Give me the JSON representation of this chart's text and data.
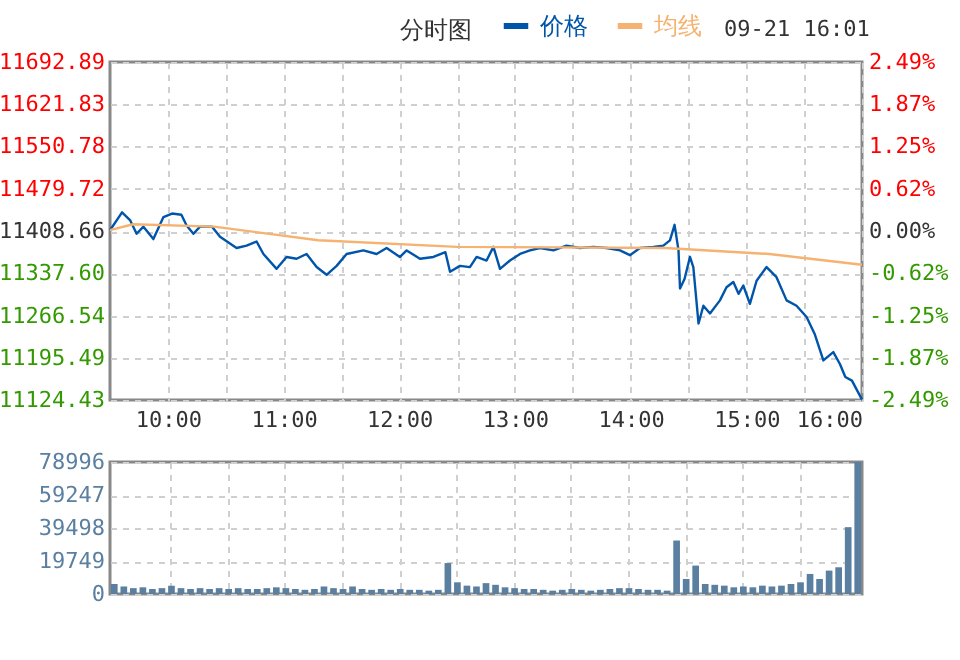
{
  "chart_data": [
    {
      "type": "line",
      "title": "分时图",
      "annotations": [
        "09-21 16:01"
      ],
      "legend": "top",
      "grid": true,
      "xlim": [
        9.5,
        16
      ],
      "xticks": [
        {
          "value": 10,
          "label": "10:00"
        },
        {
          "value": 10.5,
          "label": null
        },
        {
          "value": 11,
          "label": "11:00"
        },
        {
          "value": 11.5,
          "label": null
        },
        {
          "value": 12,
          "label": "12:00"
        },
        {
          "value": 12.5,
          "label": null
        },
        {
          "value": 13,
          "label": "13:00"
        },
        {
          "value": 13.5,
          "label": null
        },
        {
          "value": 14,
          "label": "14:00"
        },
        {
          "value": 14.5,
          "label": null
        },
        {
          "value": 15,
          "label": "15:00"
        },
        {
          "value": 15.5,
          "label": null
        },
        {
          "value": 16,
          "label": "16:00"
        }
      ],
      "ylim": [
        11124.43,
        11692.89
      ],
      "yticks": [
        {
          "value": 11124.43,
          "label": "11124.43"
        },
        {
          "value": 11195.49,
          "label": "11195.49"
        },
        {
          "value": 11266.54,
          "label": "11266.54"
        },
        {
          "value": 11337.6,
          "label": "11337.60"
        },
        {
          "value": 11408.66,
          "label": "11408.66"
        },
        {
          "value": 11479.72,
          "label": "11479.72"
        },
        {
          "value": 11550.78,
          "label": "11550.78"
        },
        {
          "value": 11621.83,
          "label": "11621.83"
        },
        {
          "value": 11692.89,
          "label": "11692.89"
        }
      ],
      "y2lim": [
        -2.49,
        2.49
      ],
      "y2ticks": [
        {
          "value": -2.49,
          "label": "-2.49%"
        },
        {
          "value": -1.87,
          "label": "-1.87%"
        },
        {
          "value": -1.25,
          "label": "-1.25%"
        },
        {
          "value": -0.62,
          "label": "-0.62%"
        },
        {
          "value": 0,
          "label": "0.00%"
        },
        {
          "value": 0.62,
          "label": "0.62%"
        },
        {
          "value": 1.25,
          "label": "1.25%"
        },
        {
          "value": 1.87,
          "label": "1.87%"
        },
        {
          "value": 2.49,
          "label": "2.49%"
        }
      ],
      "series": [
        {
          "name": "价格",
          "color": "#0055aa",
          "x": [
            9.5,
            9.604,
            9.673,
            9.73,
            9.789,
            9.875,
            9.962,
            10.036,
            10.117,
            10.162,
            10.221,
            10.278,
            10.382,
            10.451,
            10.594,
            10.681,
            10.767,
            10.826,
            10.94,
            11.026,
            11.113,
            11.199,
            11.286,
            11.372,
            11.459,
            11.545,
            11.69,
            11.804,
            11.891,
            12.006,
            12.064,
            12.179,
            12.295,
            12.399,
            12.439,
            12.525,
            12.611,
            12.669,
            12.755,
            12.814,
            12.871,
            12.957,
            13.044,
            13.13,
            13.217,
            13.333,
            13.446,
            13.562,
            13.678,
            13.792,
            13.908,
            13.994,
            14.081,
            14.197,
            14.283,
            14.34,
            14.38,
            14.414,
            14.427,
            14.466,
            14.513,
            14.542,
            14.587,
            14.629,
            14.686,
            14.772,
            14.829,
            14.888,
            14.933,
            14.974,
            15.031,
            15.089,
            15.175,
            15.261,
            15.348,
            15.434,
            15.521,
            15.59,
            15.666,
            15.752,
            15.809,
            15.856,
            15.913,
            16
          ],
          "values": [
            11410,
            11440,
            11427,
            11404,
            11416,
            11395,
            11432,
            11438,
            11436,
            11418,
            11404,
            11416,
            11416,
            11399,
            11380,
            11384,
            11391,
            11370,
            11345,
            11365,
            11362,
            11370,
            11348,
            11335,
            11350,
            11370,
            11376,
            11370,
            11380,
            11365,
            11376,
            11362,
            11365,
            11373,
            11340,
            11350,
            11348,
            11365,
            11359,
            11382,
            11345,
            11359,
            11370,
            11376,
            11380,
            11376,
            11384,
            11380,
            11382,
            11380,
            11376,
            11368,
            11380,
            11382,
            11384,
            11393,
            11419,
            11376,
            11312,
            11328,
            11365,
            11348,
            11253,
            11283,
            11270,
            11292,
            11314,
            11323,
            11303,
            11317,
            11286,
            11325,
            11348,
            11331,
            11292,
            11283,
            11264,
            11236,
            11191,
            11205,
            11185,
            11163,
            11157,
            11125
          ]
        },
        {
          "name": "均线",
          "color": "#f5b270",
          "x": [
            9.5,
            9.7,
            10.4,
            11.3,
            12.5,
            14.3,
            15.2,
            16
          ],
          "values": [
            11410,
            11420,
            11416,
            11393,
            11382,
            11380,
            11370,
            11352
          ]
        }
      ]
    },
    {
      "type": "bar",
      "grid": true,
      "tick_labels": "y",
      "categories": [
        null,
        null,
        null,
        null,
        null,
        null,
        null,
        null,
        null,
        null,
        null,
        null,
        null,
        null,
        null,
        null,
        null,
        null,
        null,
        null,
        null,
        null,
        null,
        null,
        null,
        null,
        null,
        null,
        null,
        null,
        null,
        null,
        null,
        null,
        null,
        null,
        null,
        null,
        null,
        null,
        null,
        null,
        null,
        null,
        null,
        null,
        null,
        null,
        null,
        null,
        null,
        null,
        null,
        null,
        null,
        null,
        null,
        null,
        null,
        null,
        null,
        null,
        null,
        null,
        null,
        null,
        null,
        null,
        null,
        null,
        null,
        null,
        null,
        null,
        null,
        null,
        null,
        null,
        null
      ],
      "ylim": [
        0,
        78996
      ],
      "yticks": [
        0,
        19749,
        39498,
        59247,
        78996
      ],
      "series": [
        {
          "color": "#5a7fa0",
          "values": [
            6000,
            4500,
            3500,
            4000,
            3000,
            3500,
            5000,
            3500,
            3000,
            3500,
            3000,
            3500,
            3000,
            3500,
            3000,
            3000,
            3500,
            4000,
            3500,
            3000,
            2500,
            3000,
            4500,
            3500,
            3000,
            4500,
            3000,
            2500,
            3000,
            2500,
            3000,
            2500,
            2500,
            2000,
            2500,
            18500,
            7000,
            5000,
            4500,
            6500,
            5500,
            4000,
            3500,
            3000,
            3000,
            2500,
            2000,
            2500,
            3000,
            2500,
            2000,
            2500,
            3000,
            3500,
            3500,
            3000,
            2500,
            2500,
            2000,
            32000,
            9000,
            17000,
            6000,
            5500,
            5000,
            4000,
            4500,
            4000,
            5000,
            4500,
            5000,
            6000,
            7000,
            12000,
            9000,
            14000,
            16000,
            40000,
            78996
          ]
        }
      ]
    }
  ]
}
